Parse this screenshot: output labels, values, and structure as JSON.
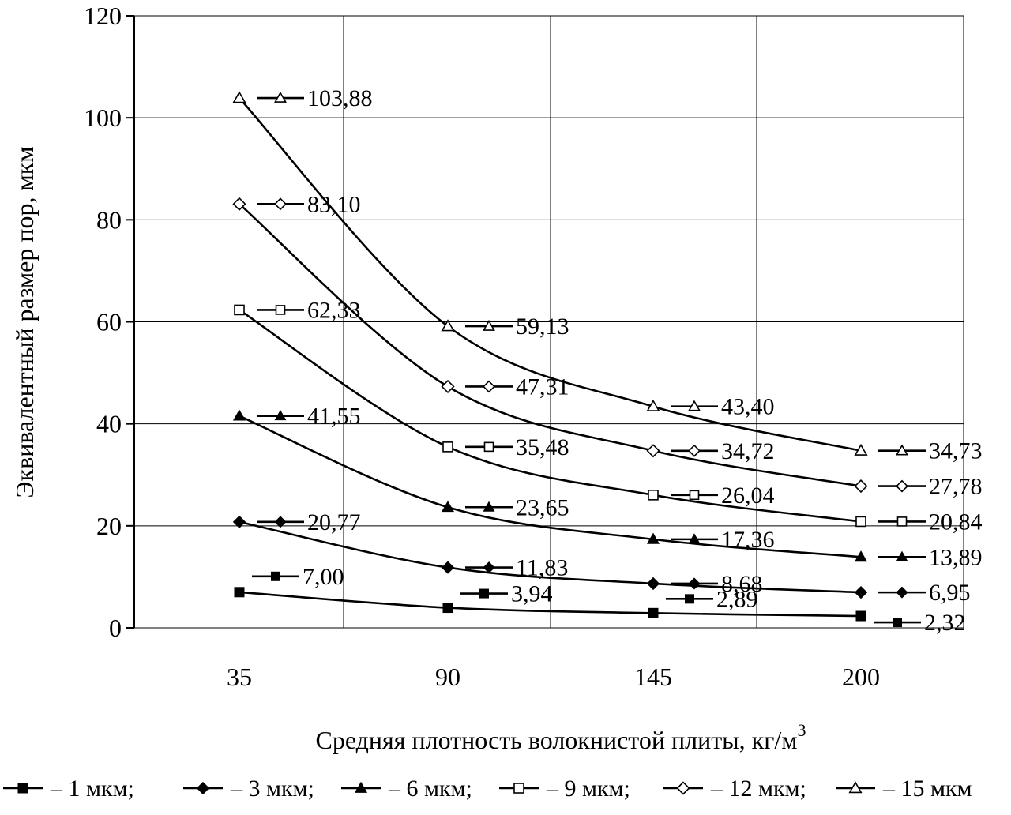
{
  "chart_data": {
    "type": "line",
    "title": "",
    "xlabel": "Средняя плотность волокнистой плиты, кг/м",
    "xlabel_sup": "3",
    "ylabel": "Эквивалентный размер пор, мкм",
    "x": [
      35,
      90,
      145,
      200
    ],
    "x_tick_labels": [
      "35",
      "90",
      "145",
      "200"
    ],
    "ylim": [
      0,
      120
    ],
    "y_ticks": [
      0,
      20,
      40,
      60,
      80,
      100,
      120
    ],
    "grid": true,
    "legend_position": "bottom",
    "series": [
      {
        "name": "– 1 мкм;",
        "marker": "square-filled",
        "values": [
          7.0,
          3.94,
          2.89,
          2.32
        ],
        "labels": [
          "7,00",
          "3,94",
          "2,89",
          "2,32"
        ]
      },
      {
        "name": "– 3 мкм;",
        "marker": "diamond-filled",
        "values": [
          20.77,
          11.83,
          8.68,
          6.95
        ],
        "labels": [
          "20,77",
          "11,83",
          "8,68",
          "6,95"
        ]
      },
      {
        "name": "– 6 мкм;",
        "marker": "triangle-filled",
        "values": [
          41.55,
          23.65,
          17.36,
          13.89
        ],
        "labels": [
          "41,55",
          "23,65",
          "17,36",
          "13,89"
        ]
      },
      {
        "name": "– 9 мкм;",
        "marker": "square-open",
        "values": [
          62.33,
          35.48,
          26.04,
          20.84
        ],
        "labels": [
          "62,33",
          "35,48",
          "26,04",
          "20,84"
        ]
      },
      {
        "name": "– 12 мкм;",
        "marker": "diamond-open",
        "values": [
          83.1,
          47.31,
          34.72,
          27.78
        ],
        "labels": [
          "83,10",
          "47,31",
          "34,72",
          "27,78"
        ]
      },
      {
        "name": "– 15 мкм",
        "marker": "triangle-open",
        "values": [
          103.88,
          59.13,
          43.4,
          34.73
        ],
        "labels": [
          "103,88",
          "59,13",
          "43,40",
          "34,73"
        ]
      }
    ]
  }
}
